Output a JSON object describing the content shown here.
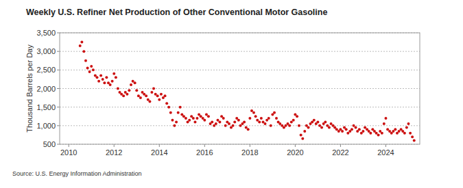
{
  "chart_data": {
    "type": "scatter",
    "title": "Weekly U.S. Refiner Net Production of Other Conventional Motor Gasoline",
    "y_label": "Thousand Barrels per Day",
    "annotations": [
      "Source: U.S. Energy Information Administration"
    ],
    "color": "#cc1111",
    "marker": "circle",
    "grid": true,
    "xlim": [
      2009.6,
      2025.5
    ],
    "xticks": [
      2010,
      2012,
      2014,
      2016,
      2018,
      2020,
      2022,
      2024
    ],
    "ylim": [
      500,
      3500
    ],
    "yticks": [
      500,
      {
        "value": 1000,
        "label": "1,000"
      },
      {
        "value": 1500,
        "label": "1,500"
      },
      {
        "value": 2000,
        "label": "2,000"
      },
      {
        "value": 2500,
        "label": "2,500"
      },
      {
        "value": 3000,
        "label": "3,000"
      },
      {
        "value": 3500,
        "label": "3,500"
      }
    ],
    "x": [
      2010.5,
      2010.58,
      2010.67,
      2010.75,
      2010.83,
      2010.92,
      2011,
      2011.08,
      2011.17,
      2011.25,
      2011.33,
      2011.42,
      2011.5,
      2011.58,
      2011.67,
      2011.75,
      2011.83,
      2011.92,
      2012,
      2012.08,
      2012.17,
      2012.25,
      2012.33,
      2012.42,
      2012.5,
      2012.58,
      2012.67,
      2012.75,
      2012.83,
      2012.92,
      2013,
      2013.08,
      2013.17,
      2013.25,
      2013.33,
      2013.42,
      2013.5,
      2013.58,
      2013.67,
      2013.75,
      2013.83,
      2013.92,
      2014,
      2014.08,
      2014.17,
      2014.25,
      2014.33,
      2014.42,
      2014.5,
      2014.58,
      2014.67,
      2014.75,
      2014.83,
      2014.92,
      2015,
      2015.08,
      2015.17,
      2015.25,
      2015.33,
      2015.42,
      2015.5,
      2015.58,
      2015.67,
      2015.75,
      2015.83,
      2015.92,
      2016,
      2016.08,
      2016.17,
      2016.25,
      2016.33,
      2016.42,
      2016.5,
      2016.58,
      2016.67,
      2016.75,
      2016.83,
      2016.92,
      2017,
      2017.08,
      2017.17,
      2017.25,
      2017.33,
      2017.42,
      2017.5,
      2017.58,
      2017.67,
      2017.75,
      2017.83,
      2017.92,
      2018,
      2018.08,
      2018.17,
      2018.25,
      2018.33,
      2018.42,
      2018.5,
      2018.58,
      2018.67,
      2018.75,
      2018.83,
      2018.92,
      2019,
      2019.08,
      2019.17,
      2019.25,
      2019.33,
      2019.42,
      2019.5,
      2019.58,
      2019.67,
      2019.75,
      2019.83,
      2019.92,
      2020,
      2020.08,
      2020.17,
      2020.25,
      2020.33,
      2020.42,
      2020.5,
      2020.58,
      2020.67,
      2020.75,
      2020.83,
      2020.92,
      2021,
      2021.08,
      2021.17,
      2021.25,
      2021.33,
      2021.42,
      2021.5,
      2021.58,
      2021.67,
      2021.75,
      2021.83,
      2021.92,
      2022,
      2022.08,
      2022.17,
      2022.25,
      2022.33,
      2022.42,
      2022.5,
      2022.58,
      2022.67,
      2022.75,
      2022.83,
      2022.92,
      2023,
      2023.08,
      2023.17,
      2023.25,
      2023.33,
      2023.42,
      2023.5,
      2023.58,
      2023.67,
      2023.75,
      2023.83,
      2023.92,
      2024,
      2024.08,
      2024.17,
      2024.25,
      2024.33,
      2024.42,
      2024.5,
      2024.58,
      2024.67,
      2024.75,
      2024.83,
      2024.92,
      2025,
      2025.08,
      2025.17,
      2025.25
    ],
    "values": [
      3150,
      3250,
      3000,
      2750,
      2550,
      2450,
      2600,
      2500,
      2350,
      2300,
      2200,
      2350,
      2250,
      2150,
      2300,
      2150,
      2100,
      2200,
      2400,
      2300,
      2000,
      1900,
      1850,
      1800,
      1900,
      1850,
      1950,
      2100,
      2200,
      2150,
      1950,
      1800,
      1750,
      1900,
      1850,
      1800,
      1700,
      1650,
      1900,
      2000,
      1850,
      1800,
      1700,
      1850,
      1750,
      1800,
      1600,
      1500,
      1350,
      1150,
      1000,
      1100,
      1350,
      1500,
      1300,
      1250,
      1200,
      1100,
      1150,
      1250,
      1200,
      1100,
      1200,
      1300,
      1250,
      1200,
      1150,
      1300,
      1250,
      1050,
      1100,
      1000,
      1050,
      1150,
      1100,
      1250,
      1200,
      1000,
      1100,
      1050,
      950,
      1000,
      1100,
      1200,
      1150,
      1000,
      1050,
      1100,
      950,
      900,
      1200,
      1400,
      1350,
      1250,
      1150,
      1100,
      1200,
      1100,
      1050,
      1150,
      1200,
      1000,
      1300,
      1350,
      1200,
      1100,
      1050,
      1000,
      950,
      1000,
      1050,
      1000,
      1100,
      1150,
      1300,
      1250,
      1000,
      750,
      650,
      850,
      1000,
      950,
      1050,
      1100,
      1150,
      1050,
      1100,
      1000,
      950,
      1050,
      1100,
      1000,
      950,
      1050,
      1000,
      950,
      900,
      850,
      900,
      850,
      950,
      900,
      800,
      850,
      900,
      1000,
      950,
      850,
      900,
      800,
      850,
      950,
      900,
      850,
      800,
      900,
      850,
      800,
      750,
      850,
      800,
      1050,
      1200,
      900,
      850,
      800,
      850,
      900,
      800,
      850,
      900,
      850,
      800,
      950,
      1050,
      800,
      700,
      600
    ]
  }
}
